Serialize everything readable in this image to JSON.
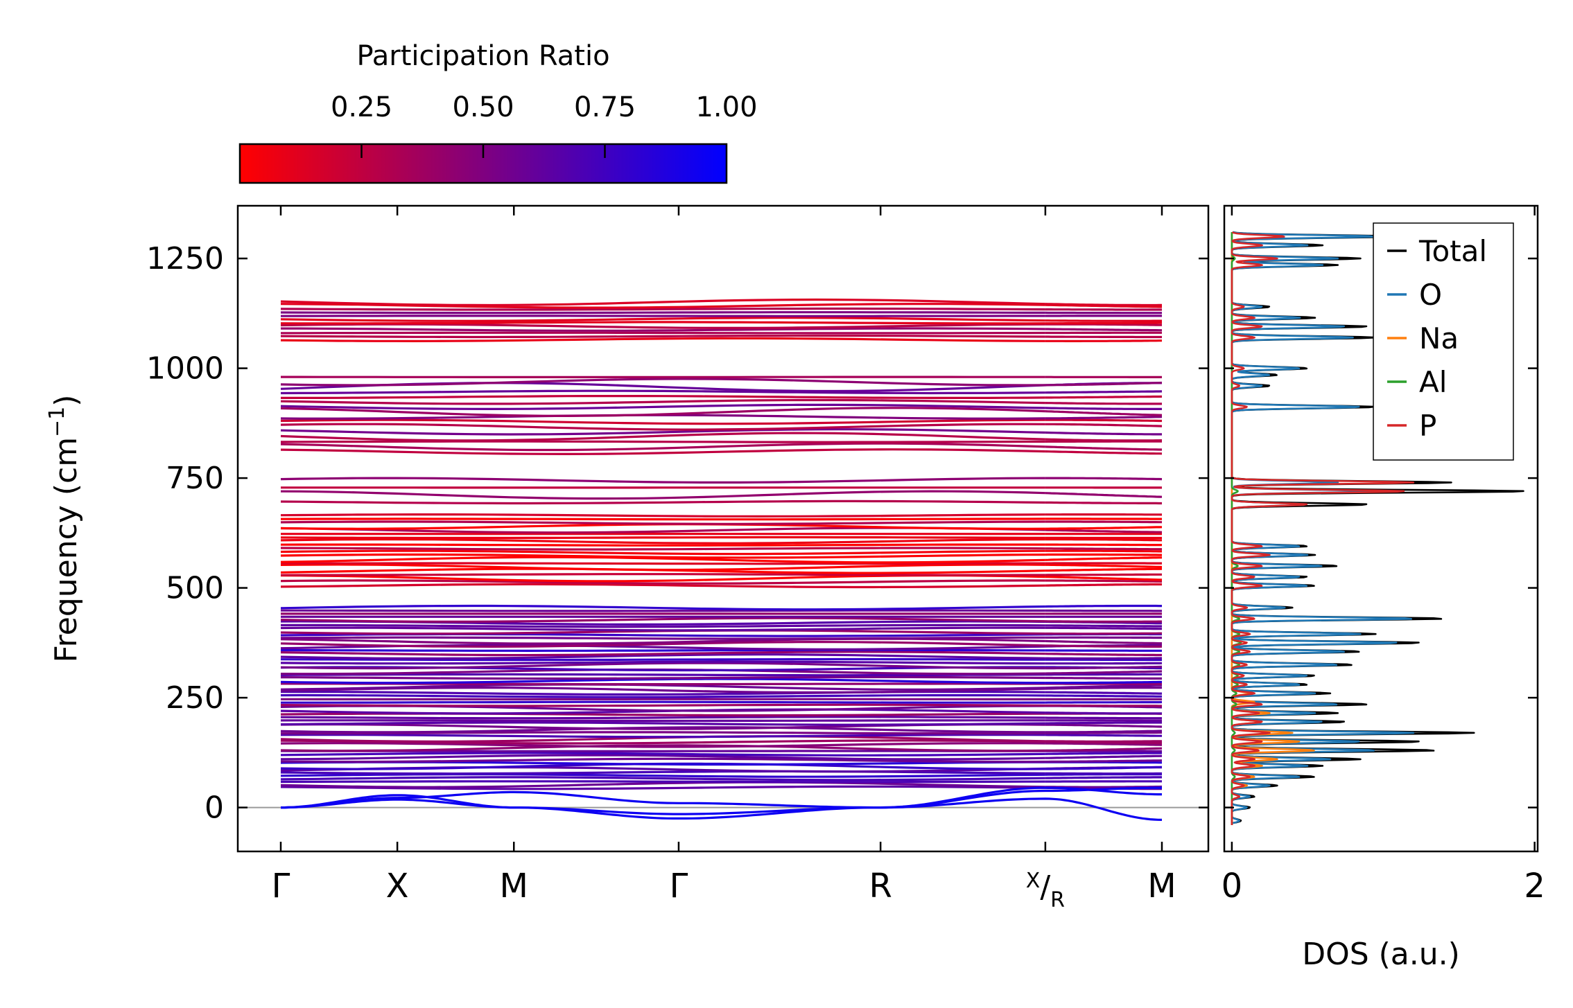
{
  "chart_data": [
    {
      "type": "line",
      "title": "",
      "xlabel": "",
      "ylabel": "Frequency (cm⁻¹)",
      "ylabel_base": "Frequency (cm",
      "ylabel_sup": "−1",
      "ylabel_close": ")",
      "ylim": [
        -100,
        1370
      ],
      "yticks": [
        0,
        250,
        500,
        750,
        1000,
        1250
      ],
      "ytick_labels": [
        "0",
        "250",
        "500",
        "750",
        "1000",
        "1250"
      ],
      "kpath": [
        "Γ",
        "X",
        "M",
        "Γ",
        "R",
        "X|R",
        "M"
      ],
      "kpath_labels": {
        "gamma1": "Γ",
        "x": "X",
        "m1": "M",
        "gamma2": "Γ",
        "r": "R",
        "xr_top": "X",
        "xr_slash": "/",
        "xr_bottom": "R",
        "m2": "M"
      },
      "kpath_distance": [
        0,
        0.5,
        1.0,
        1.707,
        2.573,
        3.28,
        3.78
      ],
      "break_after_index": 5,
      "colorbar": {
        "label": "Participation Ratio",
        "range": [
          0.0,
          1.0
        ],
        "ticks": [
          0.25,
          0.5,
          0.75,
          1.0
        ],
        "tick_labels": [
          "0.25",
          "0.50",
          "0.75",
          "1.00"
        ],
        "color_low": "#ff0000",
        "color_high": "#0000ff"
      },
      "band_groups": [
        {
          "range": [
            1065,
            1150
          ],
          "count": 12,
          "participation": 0.28
        },
        {
          "range": [
            810,
            980
          ],
          "count": 16,
          "participation": 0.42
        },
        {
          "range": [
            695,
            745
          ],
          "count": 4,
          "participation": 0.2
        },
        {
          "range": [
            505,
            665
          ],
          "count": 20,
          "participation": 0.12
        },
        {
          "range": [
            45,
            455
          ],
          "count": 60,
          "participation": 0.62
        }
      ],
      "acoustic_branches": [
        {
          "name": "acoustic-1",
          "values": [
            0,
            18,
            0,
            -25,
            0,
            45,
            30
          ]
        },
        {
          "name": "acoustic-2",
          "values": [
            0,
            28,
            0,
            -15,
            0,
            38,
            45
          ]
        },
        {
          "name": "acoustic-3",
          "values": [
            0,
            22,
            35,
            10,
            0,
            20,
            -28
          ]
        }
      ]
    },
    {
      "type": "line",
      "title": "",
      "xlabel": "DOS (a.u.)",
      "ylabel": "",
      "xlim": [
        -0.05,
        2.02
      ],
      "xticks": [
        0,
        2
      ],
      "xtick_labels": [
        "0",
        "2"
      ],
      "legend_position": "top-right",
      "series": [
        {
          "name": "Total",
          "color": "#000000",
          "peaks": [
            [
              1300,
              1.1
            ],
            [
              1280,
              0.6
            ],
            [
              1250,
              0.85
            ],
            [
              1235,
              0.7
            ],
            [
              1140,
              0.25
            ],
            [
              1115,
              0.55
            ],
            [
              1095,
              0.9
            ],
            [
              1070,
              0.95
            ],
            [
              1000,
              0.5
            ],
            [
              985,
              0.3
            ],
            [
              960,
              0.25
            ],
            [
              912,
              0.95
            ],
            [
              740,
              1.45
            ],
            [
              720,
              1.95
            ],
            [
              690,
              0.9
            ],
            [
              595,
              0.5
            ],
            [
              575,
              0.55
            ],
            [
              550,
              0.7
            ],
            [
              525,
              0.5
            ],
            [
              505,
              0.55
            ],
            [
              455,
              0.4
            ],
            [
              430,
              1.4
            ],
            [
              395,
              0.95
            ],
            [
              375,
              1.25
            ],
            [
              355,
              0.85
            ],
            [
              325,
              0.8
            ],
            [
              300,
              0.55
            ],
            [
              280,
              0.5
            ],
            [
              260,
              0.65
            ],
            [
              235,
              0.9
            ],
            [
              215,
              0.7
            ],
            [
              195,
              0.75
            ],
            [
              170,
              1.6
            ],
            [
              150,
              1.25
            ],
            [
              130,
              1.35
            ],
            [
              110,
              0.85
            ],
            [
              95,
              0.6
            ],
            [
              70,
              0.55
            ],
            [
              50,
              0.3
            ],
            [
              25,
              0.15
            ],
            [
              0,
              0.12
            ],
            [
              -30,
              0.06
            ]
          ]
        },
        {
          "name": "O",
          "color": "#1f77b4",
          "peaks": [
            [
              1300,
              0.95
            ],
            [
              1280,
              0.5
            ],
            [
              1250,
              0.7
            ],
            [
              1235,
              0.6
            ],
            [
              1140,
              0.2
            ],
            [
              1115,
              0.45
            ],
            [
              1095,
              0.75
            ],
            [
              1070,
              0.8
            ],
            [
              1000,
              0.45
            ],
            [
              985,
              0.25
            ],
            [
              960,
              0.2
            ],
            [
              912,
              0.85
            ],
            [
              740,
              0.7
            ],
            [
              720,
              0.95
            ],
            [
              690,
              0.5
            ],
            [
              595,
              0.45
            ],
            [
              575,
              0.5
            ],
            [
              550,
              0.6
            ],
            [
              525,
              0.45
            ],
            [
              505,
              0.5
            ],
            [
              455,
              0.35
            ],
            [
              430,
              1.2
            ],
            [
              395,
              0.85
            ],
            [
              375,
              1.1
            ],
            [
              355,
              0.75
            ],
            [
              325,
              0.7
            ],
            [
              300,
              0.5
            ],
            [
              280,
              0.45
            ],
            [
              260,
              0.55
            ],
            [
              235,
              0.7
            ],
            [
              215,
              0.55
            ],
            [
              195,
              0.6
            ],
            [
              170,
              1.2
            ],
            [
              150,
              0.85
            ],
            [
              130,
              0.95
            ],
            [
              110,
              0.65
            ],
            [
              95,
              0.5
            ],
            [
              70,
              0.45
            ],
            [
              50,
              0.25
            ],
            [
              25,
              0.12
            ],
            [
              0,
              0.1
            ],
            [
              -30,
              0.05
            ]
          ]
        },
        {
          "name": "Na",
          "color": "#ff7f0e",
          "peaks": [
            [
              260,
              0.12
            ],
            [
              240,
              0.15
            ],
            [
              215,
              0.25
            ],
            [
              195,
              0.2
            ],
            [
              170,
              0.4
            ],
            [
              150,
              0.45
            ],
            [
              130,
              0.55
            ],
            [
              110,
              0.3
            ],
            [
              95,
              0.2
            ],
            [
              70,
              0.15
            ],
            [
              50,
              0.1
            ],
            [
              25,
              0.05
            ]
          ]
        },
        {
          "name": "Al",
          "color": "#2ca02c",
          "peaks": [
            [
              1250,
              0.02
            ],
            [
              720,
              0.04
            ],
            [
              550,
              0.04
            ],
            [
              430,
              0.05
            ],
            [
              395,
              0.05
            ],
            [
              375,
              0.06
            ],
            [
              355,
              0.05
            ],
            [
              325,
              0.05
            ],
            [
              300,
              0.04
            ],
            [
              280,
              0.04
            ],
            [
              260,
              0.03
            ],
            [
              235,
              0.03
            ],
            [
              170,
              0.02
            ],
            [
              130,
              0.02
            ],
            [
              70,
              0.02
            ]
          ]
        },
        {
          "name": "P",
          "color": "#d62728",
          "peaks": [
            [
              1300,
              0.35
            ],
            [
              1280,
              0.2
            ],
            [
              1250,
              0.3
            ],
            [
              1235,
              0.2
            ],
            [
              1140,
              0.08
            ],
            [
              1115,
              0.15
            ],
            [
              1095,
              0.2
            ],
            [
              1070,
              0.15
            ],
            [
              1000,
              0.08
            ],
            [
              960,
              0.05
            ],
            [
              912,
              0.1
            ],
            [
              740,
              1.2
            ],
            [
              720,
              1.15
            ],
            [
              690,
              0.5
            ],
            [
              595,
              0.2
            ],
            [
              575,
              0.25
            ],
            [
              550,
              0.2
            ],
            [
              525,
              0.15
            ],
            [
              505,
              0.2
            ],
            [
              455,
              0.1
            ],
            [
              430,
              0.15
            ],
            [
              395,
              0.12
            ],
            [
              375,
              0.1
            ],
            [
              355,
              0.12
            ],
            [
              325,
              0.1
            ],
            [
              300,
              0.08
            ],
            [
              280,
              0.1
            ],
            [
              260,
              0.15
            ],
            [
              235,
              0.2
            ],
            [
              215,
              0.18
            ],
            [
              195,
              0.2
            ],
            [
              170,
              0.25
            ],
            [
              150,
              0.2
            ],
            [
              130,
              0.18
            ],
            [
              110,
              0.15
            ],
            [
              95,
              0.15
            ],
            [
              70,
              0.12
            ],
            [
              50,
              0.08
            ],
            [
              25,
              0.05
            ]
          ]
        }
      ],
      "legend": [
        "Total",
        "O",
        "Na",
        "Al",
        "P"
      ]
    }
  ]
}
